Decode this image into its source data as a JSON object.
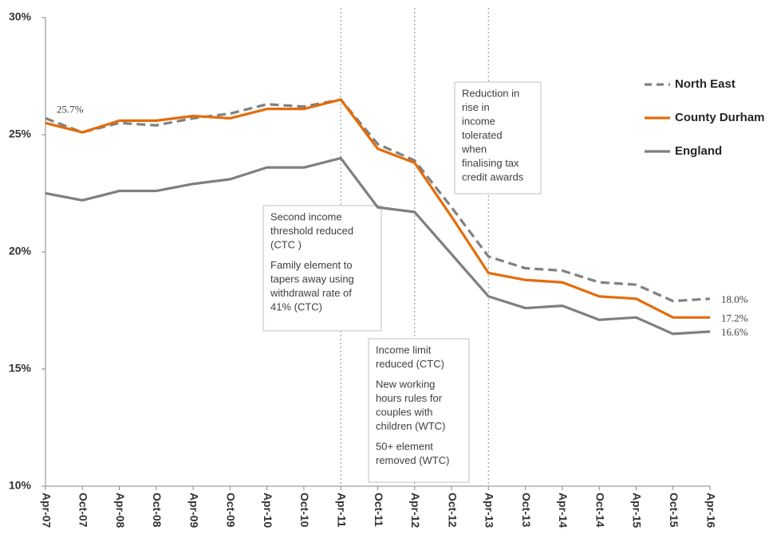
{
  "chart_data": {
    "type": "line",
    "categories": [
      "Apr-07",
      "Oct-07",
      "Apr-08",
      "Oct-08",
      "Apr-09",
      "Oct-09",
      "Apr-10",
      "Oct-10",
      "Apr-11",
      "Oct-11",
      "Apr-12",
      "Oct-12",
      "Apr-13",
      "Oct-13",
      "Apr-14",
      "Oct-14",
      "Apr-15",
      "Oct-15",
      "Apr-16"
    ],
    "series": [
      {
        "name": "North East",
        "color": "#808080",
        "dashed": true,
        "values": [
          25.7,
          25.1,
          25.5,
          25.4,
          25.7,
          25.9,
          26.3,
          26.2,
          26.5,
          24.6,
          23.9,
          21.9,
          19.8,
          19.3,
          19.2,
          18.7,
          18.6,
          17.9,
          18.0
        ],
        "value_labels": [
          "25.7%",
          null,
          null,
          null,
          null,
          null,
          null,
          null,
          null,
          null,
          null,
          null,
          null,
          null,
          null,
          null,
          null,
          null,
          "18.0%"
        ]
      },
      {
        "name": "County Durham",
        "color": "#E46C0A",
        "dashed": false,
        "values": [
          25.5,
          25.1,
          25.6,
          25.6,
          25.8,
          25.7,
          26.1,
          26.1,
          26.5,
          24.4,
          23.8,
          21.5,
          19.1,
          18.8,
          18.7,
          18.1,
          18.0,
          17.2,
          17.2
        ],
        "value_labels": [
          null,
          null,
          null,
          null,
          null,
          null,
          null,
          null,
          null,
          null,
          null,
          null,
          null,
          null,
          null,
          null,
          null,
          null,
          "17.2%"
        ]
      },
      {
        "name": "England",
        "color": "#7F7F7F",
        "dashed": false,
        "values": [
          22.5,
          22.2,
          22.6,
          22.6,
          22.9,
          23.1,
          23.6,
          23.6,
          24.0,
          21.9,
          21.7,
          19.9,
          18.1,
          17.6,
          17.7,
          17.1,
          17.2,
          16.5,
          16.6
        ],
        "value_labels": [
          null,
          null,
          null,
          null,
          null,
          null,
          null,
          null,
          null,
          null,
          null,
          null,
          null,
          null,
          null,
          null,
          null,
          null,
          "16.6%"
        ]
      }
    ],
    "ylim": [
      10,
      30
    ],
    "yticks": [
      {
        "value": 10,
        "label": "10%"
      },
      {
        "value": 15,
        "label": "15%"
      },
      {
        "value": 20,
        "label": "20%"
      },
      {
        "value": 25,
        "label": "25%"
      },
      {
        "value": 30,
        "label": "30%"
      }
    ],
    "grid": false,
    "legend": "right",
    "annotations": [
      {
        "x": "Apr-11",
        "paragraphs": [
          [
            "Second income",
            "threshold reduced",
            "(CTC )"
          ],
          [
            " Family element to",
            "tapers away using",
            "withdrawal rate of",
            "41% (CTC)"
          ]
        ]
      },
      {
        "x": "Apr-12",
        "paragraphs": [
          [
            "Income limit",
            "reduced (CTC)"
          ],
          [
            "New working",
            "hours rules for",
            "couples with",
            "children (WTC)"
          ],
          [
            "50+ element",
            "removed  (WTC)"
          ]
        ]
      },
      {
        "x": "Apr-13",
        "paragraphs": [
          [
            "Reduction in",
            "rise in",
            "income",
            "tolerated",
            "when",
            "finalising tax",
            "credit awards"
          ]
        ]
      }
    ]
  }
}
